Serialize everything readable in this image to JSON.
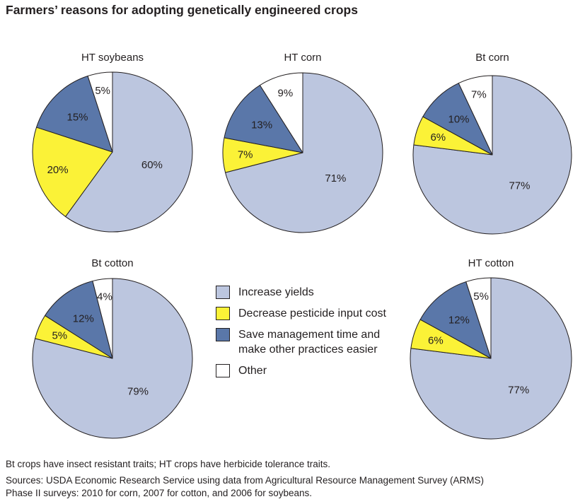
{
  "title": "Farmers’ reasons for adopting genetically engineered crops",
  "chart_data": {
    "type": "pie",
    "title": "Farmers’ reasons for adopting genetically engineered crops",
    "legend": [
      {
        "name": "Increase yields",
        "color": "#bcc6df"
      },
      {
        "name": "Decrease pesticide input cost",
        "color": "#fbf237"
      },
      {
        "name": "Save management time and make other practices easier",
        "color": "#5a77a9"
      },
      {
        "name": "Other",
        "color": "#ffffff"
      }
    ],
    "legend_lines": [
      [
        "Increase yields"
      ],
      [
        "Decrease pesticide input cost"
      ],
      [
        "Save management time and",
        "make other practices easier"
      ],
      [
        "Other"
      ]
    ],
    "legend_placement": "center",
    "charts": [
      {
        "title": "HT soybeans",
        "values": [
          60,
          20,
          15,
          5
        ],
        "labels": [
          "60%",
          "20%",
          "15%",
          "5%"
        ]
      },
      {
        "title": "HT corn",
        "values": [
          71,
          7,
          13,
          9
        ],
        "labels": [
          "71%",
          "7%",
          "13%",
          "9%"
        ]
      },
      {
        "title": "Bt corn",
        "values": [
          77,
          6,
          10,
          7
        ],
        "labels": [
          "77%",
          "6%",
          "10%",
          "7%"
        ]
      },
      {
        "title": "Bt cotton",
        "values": [
          79,
          5,
          12,
          4
        ],
        "labels": [
          "79%",
          "5%",
          "12%",
          "4%"
        ]
      },
      {
        "title": "HT cotton",
        "values": [
          77,
          6,
          12,
          5
        ],
        "labels": [
          "77%",
          "6%",
          "12%",
          "5%"
        ]
      }
    ]
  },
  "notes": {
    "line1": "Bt crops have insect resistant traits; HT crops have herbicide tolerance traits.",
    "line2": "Sources: USDA Economic Research Service using data from Agricultural Resource Management Survey (ARMS)",
    "line3": "Phase II surveys:  2010 for corn, 2007 for cotton, and 2006 for soybeans."
  }
}
